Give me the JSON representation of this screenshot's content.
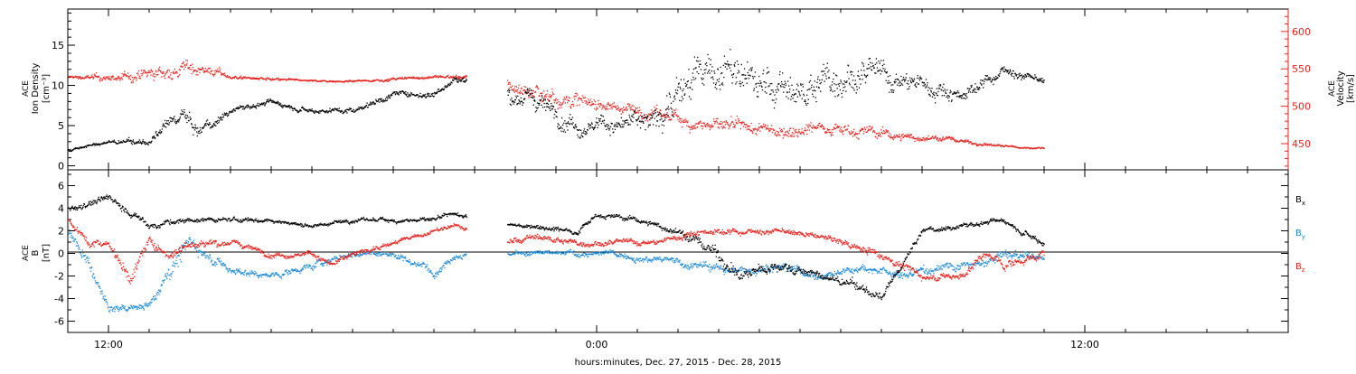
{
  "colors": {
    "black": "#000000",
    "red": "#e8231e",
    "blue": "#1f8ad6"
  },
  "chart_data": [
    {
      "type": "scatter",
      "xlabel": "hours:minutes, Dec. 27, 2015 - Dec. 28, 2015",
      "x_tick_labels": [
        "12:00",
        "0:00",
        "12:00"
      ],
      "x_tick_hours": [
        12,
        24,
        36
      ],
      "xlim_hours": [
        11,
        41
      ],
      "data_gap_hours": [
        20.8,
        21.8
      ],
      "left_axis": {
        "label_lines": [
          "ACE",
          "Ion Density",
          "[cm⁻³]"
        ],
        "ylim": [
          -0.5,
          19.5
        ],
        "ticks": [
          0,
          5,
          10,
          15
        ],
        "tick_labels": [
          "0",
          "5",
          "10",
          "15"
        ]
      },
      "right_axis": {
        "label_lines": [
          "ACE",
          "Velocity",
          "[km/s]"
        ],
        "ylim": [
          415,
          630
        ],
        "ticks": [
          450,
          500,
          550,
          600
        ],
        "tick_labels": [
          "450",
          "500",
          "550",
          "600"
        ],
        "color": "#e8231e"
      },
      "series": [
        {
          "key": "density",
          "axis": "left",
          "color": "#000000",
          "x": [
            11.0,
            12.0,
            13.0,
            13.8,
            14.2,
            15.0,
            16.0,
            17.0,
            18.0,
            19.0,
            20.0,
            20.5,
            21.8,
            22.5,
            23.5,
            24.5,
            25.5,
            26.0,
            27.0,
            28.0,
            29.0,
            30.0,
            31.0,
            32.0,
            33.0,
            34.0,
            35.0
          ],
          "y": [
            2.0,
            3.0,
            3.0,
            6.5,
            4.0,
            7.0,
            8.0,
            7.0,
            7.0,
            9.0,
            9.0,
            11.0,
            9.0,
            8.0,
            5.5,
            5.0,
            6.0,
            10.0,
            12.0,
            10.0,
            9.0,
            12.0,
            11.0,
            10.0,
            9.0,
            12.0,
            10.5
          ],
          "scatter": [
            0.3,
            0.4,
            0.6,
            1.5,
            1.5,
            0.6,
            0.5,
            0.5,
            0.6,
            0.6,
            0.6,
            0.6,
            1.5,
            2.0,
            2.0,
            1.5,
            2.5,
            4.0,
            4.0,
            3.5,
            3.5,
            3.5,
            2.5,
            2.0,
            1.2,
            1.0,
            0.6
          ]
        },
        {
          "key": "velocity",
          "axis": "right",
          "color": "#e8231e",
          "x": [
            11.0,
            12.0,
            13.0,
            13.8,
            14.2,
            15.0,
            16.0,
            17.0,
            18.0,
            19.0,
            20.0,
            20.5,
            21.8,
            22.5,
            23.5,
            24.5,
            25.5,
            26.5,
            27.5,
            28.5,
            29.5,
            30.5,
            31.5,
            32.5,
            33.5,
            34.5,
            35.0
          ],
          "y": [
            540,
            538,
            542,
            550,
            553,
            540,
            536,
            535,
            534,
            537,
            540,
            540,
            526,
            520,
            508,
            500,
            490,
            478,
            470,
            468,
            475,
            468,
            460,
            458,
            450,
            445,
            445
          ],
          "scatter": [
            3,
            8,
            12,
            18,
            14,
            4,
            3,
            2,
            2,
            3,
            3,
            5,
            14,
            18,
            16,
            12,
            14,
            14,
            14,
            14,
            12,
            12,
            10,
            6,
            3,
            2,
            2
          ]
        }
      ]
    },
    {
      "type": "scatter",
      "ylabel_lines": [
        "ACE",
        "B",
        "[nT]"
      ],
      "ylim": [
        -7,
        7.4
      ],
      "ticks": [
        -6,
        -4,
        -2,
        0,
        2,
        4,
        6
      ],
      "tick_labels": [
        "-6",
        "-4",
        "-2",
        "0",
        "2",
        "4",
        "6"
      ],
      "zero_line": true,
      "legend": [
        {
          "label": "B",
          "sub": "x",
          "color": "#000000"
        },
        {
          "label": "B",
          "sub": "y",
          "color": "#1f8ad6"
        },
        {
          "label": "B",
          "sub": "z",
          "color": "#e8231e"
        }
      ],
      "series": [
        {
          "key": "bx",
          "color": "#000000",
          "x": [
            11.0,
            12.0,
            13.0,
            14.0,
            15.0,
            16.0,
            17.0,
            18.0,
            19.0,
            20.0,
            20.5,
            21.8,
            22.5,
            23.5,
            24.0,
            25.0,
            26.0,
            27.0,
            27.5,
            28.5,
            29.5,
            30.5,
            31.0,
            32.0,
            33.0,
            34.0,
            35.0
          ],
          "y": [
            4.0,
            5.0,
            2.5,
            3.0,
            3.0,
            3.0,
            2.5,
            3.0,
            3.0,
            3.0,
            3.5,
            2.5,
            2.5,
            2.0,
            3.5,
            3.0,
            2.0,
            0.0,
            -2.0,
            -1.0,
            -2.0,
            -3.0,
            -4.0,
            2.0,
            2.5,
            3.0,
            1.0
          ],
          "scatter": [
            0.4,
            0.5,
            0.5,
            0.4,
            0.3,
            0.3,
            0.3,
            0.3,
            0.3,
            0.3,
            0.3,
            0.3,
            0.3,
            0.4,
            0.3,
            0.4,
            0.6,
            1.0,
            0.8,
            0.8,
            0.6,
            0.6,
            0.5,
            0.4,
            0.4,
            0.3,
            0.5
          ]
        },
        {
          "key": "by",
          "color": "#1f8ad6",
          "x": [
            11.0,
            11.5,
            12.0,
            13.0,
            13.5,
            14.0,
            15.0,
            16.0,
            17.0,
            18.0,
            19.0,
            20.0,
            20.5,
            21.8,
            22.5,
            23.5,
            24.5,
            25.5,
            26.5,
            27.5,
            28.5,
            29.5,
            30.5,
            31.5,
            32.5,
            33.5,
            34.0,
            35.0
          ],
          "y": [
            2.0,
            -1.0,
            -5.0,
            -4.5,
            -1.0,
            1.0,
            -1.5,
            -2.0,
            -1.0,
            0.0,
            0.0,
            -1.5,
            0.0,
            0.0,
            0.0,
            0.0,
            0.0,
            -0.5,
            -1.0,
            -1.5,
            -1.0,
            -2.0,
            -1.0,
            -2.0,
            -1.0,
            -1.0,
            0.0,
            -0.5
          ],
          "scatter": [
            0.6,
            1.0,
            0.6,
            0.5,
            1.5,
            1.0,
            0.6,
            0.4,
            0.6,
            0.4,
            0.5,
            0.6,
            0.4,
            0.3,
            0.4,
            0.4,
            0.4,
            0.5,
            0.6,
            0.6,
            0.6,
            0.5,
            0.6,
            0.6,
            0.6,
            0.6,
            0.6,
            0.4
          ]
        },
        {
          "key": "bz",
          "color": "#e8231e",
          "x": [
            11.0,
            11.5,
            12.0,
            12.5,
            13.0,
            13.5,
            14.0,
            15.0,
            16.0,
            17.0,
            17.5,
            18.0,
            19.0,
            20.0,
            20.5,
            21.8,
            22.5,
            23.5,
            24.5,
            25.5,
            26.5,
            27.5,
            28.5,
            29.5,
            30.5,
            31.0,
            32.0,
            33.0,
            33.5,
            34.0,
            34.5,
            35.0
          ],
          "y": [
            3.0,
            1.0,
            1.0,
            -2.0,
            1.0,
            0.0,
            1.0,
            1.0,
            0.0,
            0.0,
            -1.0,
            0.0,
            1.0,
            2.0,
            2.5,
            1.0,
            1.5,
            1.0,
            1.0,
            1.0,
            2.0,
            2.0,
            2.0,
            1.5,
            0.5,
            0.0,
            -2.0,
            -2.0,
            0.0,
            -1.0,
            -0.5,
            0.0
          ],
          "scatter": [
            0.4,
            0.6,
            0.5,
            1.0,
            0.8,
            0.6,
            0.6,
            0.4,
            0.4,
            0.4,
            0.4,
            0.4,
            0.3,
            0.3,
            0.3,
            0.4,
            0.5,
            0.4,
            0.4,
            0.4,
            0.4,
            0.4,
            0.4,
            0.4,
            0.6,
            0.6,
            0.5,
            0.5,
            0.6,
            0.6,
            0.6,
            0.5
          ]
        }
      ]
    }
  ]
}
